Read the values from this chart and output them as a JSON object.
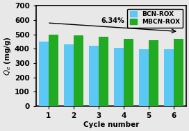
{
  "cycles": [
    1,
    2,
    3,
    4,
    5,
    6
  ],
  "bcn_rox": [
    448,
    432,
    422,
    408,
    395,
    398
  ],
  "mbcn_rox": [
    500,
    492,
    484,
    468,
    458,
    468
  ],
  "bcn_color": "#5bc8f5",
  "mbcn_color": "#22aa22",
  "xlabel": "Cycle number",
  "ylabel": "$Q_e$ (mg/g)",
  "ylim": [
    0,
    700
  ],
  "yticks": [
    0,
    100,
    200,
    300,
    400,
    500,
    600,
    700
  ],
  "legend_labels": [
    "BCN-ROX",
    "MBCN-ROX"
  ],
  "arrow_text": "6.34%",
  "bg_color": "#e8e8e8",
  "bar_width": 0.38
}
